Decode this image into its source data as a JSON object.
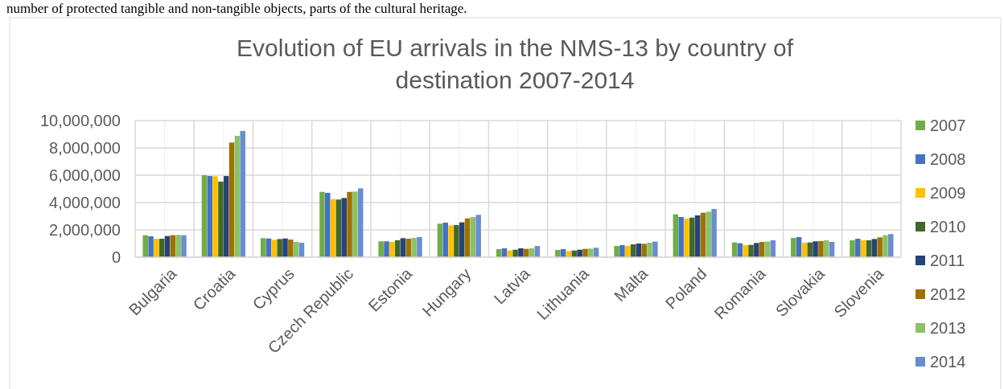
{
  "chart_data": {
    "type": "bar",
    "title": "Evolution of EU arrivals in the NMS-13 by country of destination 2007-2014",
    "annotations": [
      "number of protected tangible and non-tangible objects, parts of the cultural heritage."
    ],
    "categories": [
      "Bulgaria",
      "Croatia",
      "Cyprus",
      "Czech Republic",
      "Estonia",
      "Hungary",
      "Latvia",
      "Lithuania",
      "Malta",
      "Poland",
      "Romania",
      "Slovakia",
      "Slovenia"
    ],
    "series": [
      {
        "name": "2007",
        "color": "#70ad47",
        "values": [
          1610000,
          6000000,
          1390000,
          4780000,
          1160000,
          2450000,
          590000,
          530000,
          820000,
          3140000,
          1080000,
          1410000,
          1240000
        ]
      },
      {
        "name": "2008",
        "color": "#4472c4",
        "values": [
          1530000,
          5940000,
          1370000,
          4710000,
          1160000,
          2530000,
          650000,
          590000,
          880000,
          2940000,
          1020000,
          1470000,
          1350000
        ]
      },
      {
        "name": "2009",
        "color": "#ffc000",
        "values": [
          1350000,
          5920000,
          1270000,
          4250000,
          1120000,
          2330000,
          490000,
          450000,
          820000,
          2820000,
          880000,
          1060000,
          1240000
        ]
      },
      {
        "name": "2010",
        "color": "#43682b",
        "values": [
          1350000,
          5530000,
          1330000,
          4220000,
          1240000,
          2350000,
          550000,
          490000,
          940000,
          2900000,
          900000,
          1080000,
          1240000
        ]
      },
      {
        "name": "2011",
        "color": "#264478",
        "values": [
          1550000,
          5940000,
          1370000,
          4330000,
          1390000,
          2550000,
          650000,
          550000,
          1000000,
          3060000,
          1040000,
          1160000,
          1330000
        ]
      },
      {
        "name": "2012",
        "color": "#9e7200",
        "values": [
          1610000,
          8390000,
          1290000,
          4780000,
          1350000,
          2840000,
          610000,
          610000,
          980000,
          3250000,
          1120000,
          1180000,
          1450000
        ]
      },
      {
        "name": "2013",
        "color": "#8cc168",
        "values": [
          1630000,
          8880000,
          1120000,
          4800000,
          1410000,
          2940000,
          650000,
          630000,
          1060000,
          3330000,
          1140000,
          1240000,
          1610000
        ]
      },
      {
        "name": "2014",
        "color": "#698ed0",
        "values": [
          1610000,
          9240000,
          1060000,
          5040000,
          1470000,
          3100000,
          820000,
          690000,
          1140000,
          3530000,
          1240000,
          1120000,
          1690000
        ]
      }
    ],
    "ylim": [
      0,
      10000000
    ],
    "yticks": [
      {
        "value": 0,
        "label": "0"
      },
      {
        "value": 2000000,
        "label": "2,000,000"
      },
      {
        "value": 4000000,
        "label": "4,000,000"
      },
      {
        "value": 6000000,
        "label": "6,000,000"
      },
      {
        "value": 8000000,
        "label": "8,000,000"
      },
      {
        "value": 10000000,
        "label": "10,000,000"
      }
    ],
    "grid": true,
    "legend": "right"
  }
}
